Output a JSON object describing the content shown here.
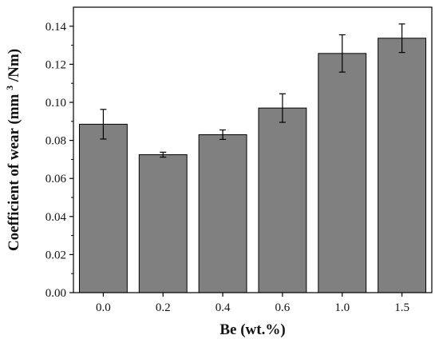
{
  "chart_data": {
    "type": "bar",
    "title": "",
    "xlabel": "Be (wt.%)",
    "ylabel_parts": [
      "Coefficient of wear (mm",
      "3",
      "/Nm)"
    ],
    "categories": [
      "0.0",
      "0.2",
      "0.4",
      "0.6",
      "1.0",
      "1.5"
    ],
    "values": [
      0.0885,
      0.0725,
      0.083,
      0.097,
      0.1257,
      0.1337
    ],
    "error": [
      0.0078,
      0.0013,
      0.0025,
      0.0075,
      0.0098,
      0.0075
    ],
    "ylim": [
      0,
      0.15
    ],
    "yticks": [
      0.0,
      0.02,
      0.04,
      0.06,
      0.08,
      0.1,
      0.12,
      0.14
    ],
    "ytick_labels": [
      "0.00",
      "0.02",
      "0.04",
      "0.06",
      "0.08",
      "0.10",
      "0.12",
      "0.14"
    ],
    "grid": false,
    "bar_color": "#808080",
    "edge_color": "#000000"
  }
}
